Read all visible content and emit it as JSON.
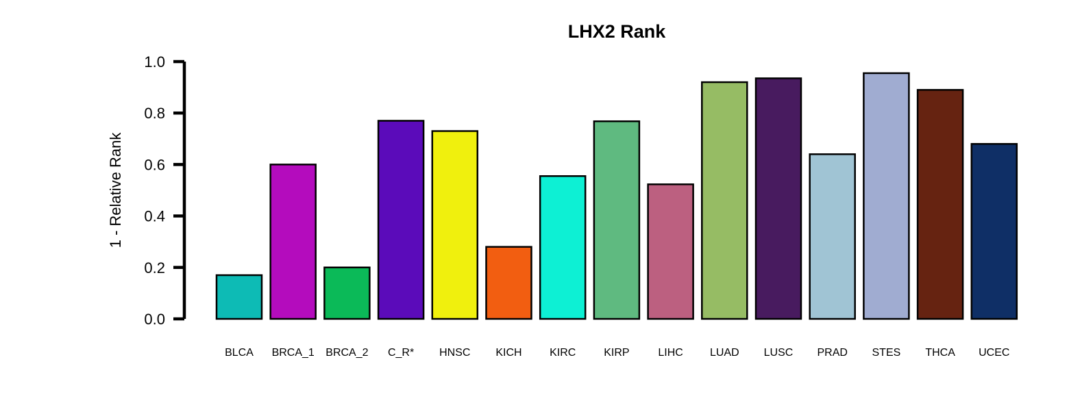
{
  "chart_data": {
    "type": "bar",
    "title": "LHX2 Rank",
    "xlabel": "",
    "ylabel": "1 - Relative Rank",
    "ylim": [
      0,
      1.0
    ],
    "yticks": [
      "0.0",
      "0.2",
      "0.4",
      "0.6",
      "0.8",
      "1.0"
    ],
    "grid": false,
    "legend": "none",
    "categories": [
      "BLCA",
      "BRCA_1",
      "BRCA_2",
      "C_R*",
      "HNSC",
      "KICH",
      "KIRC",
      "KIRP",
      "LIHC",
      "LUAD",
      "LUSC",
      "PRAD",
      "STES",
      "THCA",
      "UCEC"
    ],
    "values": [
      0.17,
      0.6,
      0.2,
      0.77,
      0.73,
      0.28,
      0.555,
      0.768,
      0.523,
      0.92,
      0.935,
      0.64,
      0.955,
      0.89,
      0.68
    ],
    "colors": [
      "#0dbbb5",
      "#b40cbd",
      "#0bba58",
      "#5b0bba",
      "#f0f00d",
      "#f25e11",
      "#0df0d4",
      "#5fba80",
      "#bc6080",
      "#96bc64",
      "#481b5f",
      "#a0c4d4",
      "#a0acd1",
      "#662311",
      "#0f2f66"
    ]
  }
}
